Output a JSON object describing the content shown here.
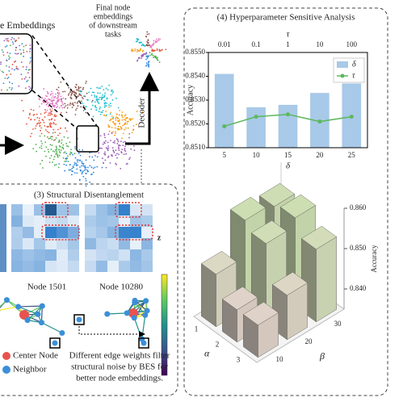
{
  "header": {
    "left_title": "e Embeddings",
    "final_label": [
      "Final node",
      "embeddings",
      "of downstream",
      "tasks"
    ],
    "decoder": "Decoder"
  },
  "panel3": {
    "title": "(3) Structural Disentanglement",
    "nodes": [
      "Node 1501",
      "Node 10280"
    ],
    "z_label": "z",
    "legend": [
      "Center Node",
      "Neighbor"
    ],
    "caption": [
      "Different edge weights filter",
      "structural noise by BES for",
      "better node embeddings."
    ]
  },
  "chart_data": [
    {
      "type": "bar-line",
      "title": "(4) Hyperparameter Sensitive Analysis",
      "y_label": "Accuracy",
      "x_label": "δ",
      "x2_label": "τ",
      "categories": [
        "5",
        "10",
        "15",
        "20",
        "25"
      ],
      "x2_categories": [
        "0.01",
        "0.1",
        "1",
        "10",
        "100"
      ],
      "series": [
        {
          "name": "δ",
          "kind": "bar",
          "color": "#a8c9e8",
          "values": [
            0.8541,
            0.8527,
            0.8528,
            0.8533,
            0.8537
          ]
        },
        {
          "name": "τ",
          "kind": "line",
          "color": "#5cb85c",
          "values": [
            0.8519,
            0.8523,
            0.8524,
            0.8521,
            0.8523
          ]
        }
      ],
      "ylim": [
        0.851,
        0.855
      ],
      "yticks": [
        {
          "value": 0.851,
          "label": "0.8510"
        },
        {
          "value": 0.852,
          "label": "0.8520"
        },
        {
          "value": 0.853,
          "label": "0.8530"
        },
        {
          "value": 0.854,
          "label": "0.8540"
        },
        {
          "value": 0.855,
          "label": "0.8550"
        }
      ],
      "legend": "upper right"
    },
    {
      "type": "bar3d",
      "x_label": "α",
      "y_label": "β",
      "z_label": "Accuracy",
      "x_categories": [
        "1",
        "2",
        "3"
      ],
      "y_categories": [
        "10",
        "20",
        "30"
      ],
      "values": [
        [
          0.848,
          0.857,
          0.856
        ],
        [
          0.843,
          0.855,
          0.857
        ],
        [
          0.843,
          0.846,
          0.853
        ]
      ],
      "zlim": [
        0.835,
        0.86
      ],
      "zticks": [
        {
          "value": 0.84,
          "label": "0.840"
        },
        {
          "value": 0.85,
          "label": "0.850"
        },
        {
          "value": 0.86,
          "label": "0.860"
        }
      ],
      "colormap": [
        "#e4c6cf",
        "#dcd8c4",
        "#c8e0ac"
      ]
    }
  ]
}
